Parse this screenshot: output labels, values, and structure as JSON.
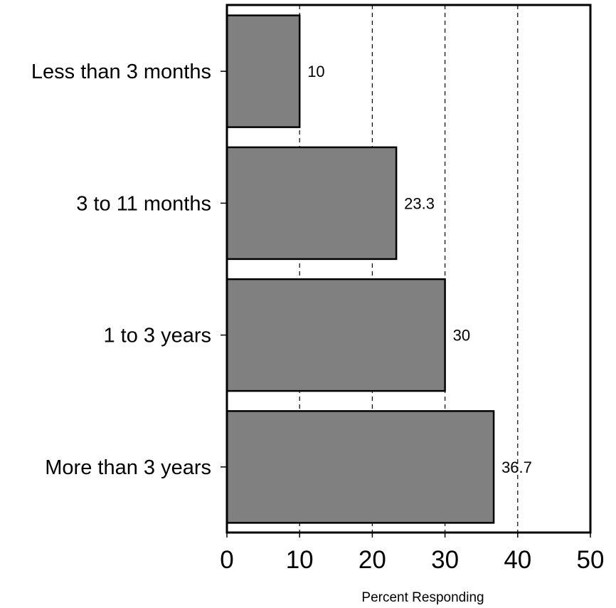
{
  "chart_data": {
    "type": "bar",
    "orientation": "horizontal",
    "categories": [
      "Less than 3 months",
      "3 to 11 months",
      "1 to 3 years",
      "More than 3 years"
    ],
    "values": [
      10,
      23.3,
      30,
      36.7
    ],
    "value_labels": [
      "10",
      "23.3",
      "30",
      "36.7"
    ],
    "xlabel": "Percent Responding",
    "ylabel": "",
    "title": "",
    "xlim": [
      0,
      50
    ],
    "xticks": [
      "0",
      "10",
      "20",
      "30",
      "40",
      "50"
    ],
    "grid": "vertical dashed at 10, 20, 30, 40",
    "legend": "none",
    "colors": {
      "bar_fill": "#808080",
      "bar_stroke": "#000000",
      "grid": "#000000",
      "background": "#ffffff"
    }
  }
}
